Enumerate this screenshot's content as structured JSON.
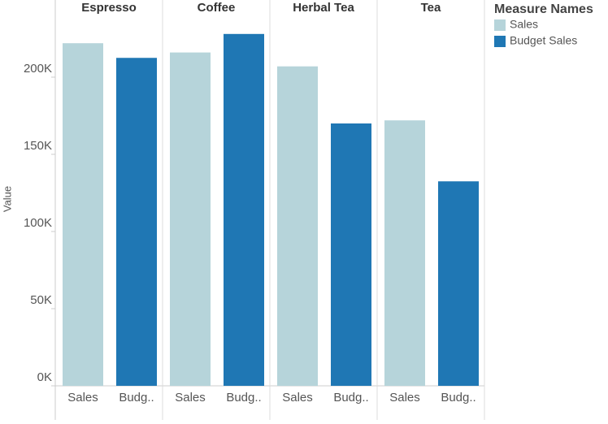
{
  "chart_data": {
    "type": "bar",
    "categories": [
      "Espresso",
      "Coffee",
      "Herbal Tea",
      "Tea"
    ],
    "bar_labels": [
      "Sales",
      "Budg.."
    ],
    "series": [
      {
        "name": "Sales",
        "color": "#b6d4da",
        "values": [
          222000,
          216000,
          207000,
          172000
        ]
      },
      {
        "name": "Budget Sales",
        "color": "#1f77b4",
        "values": [
          212500,
          228000,
          170000,
          132500
        ]
      }
    ],
    "ylabel": "Value",
    "legend_title": "Measure Names",
    "legend": "right",
    "grid": false,
    "ylim": [
      0,
      250000
    ],
    "yticks": [
      {
        "value": 0,
        "label": "0K"
      },
      {
        "value": 50000,
        "label": "50K"
      },
      {
        "value": 100000,
        "label": "100K"
      },
      {
        "value": 150000,
        "label": "150K"
      },
      {
        "value": 200000,
        "label": "200K"
      }
    ]
  }
}
